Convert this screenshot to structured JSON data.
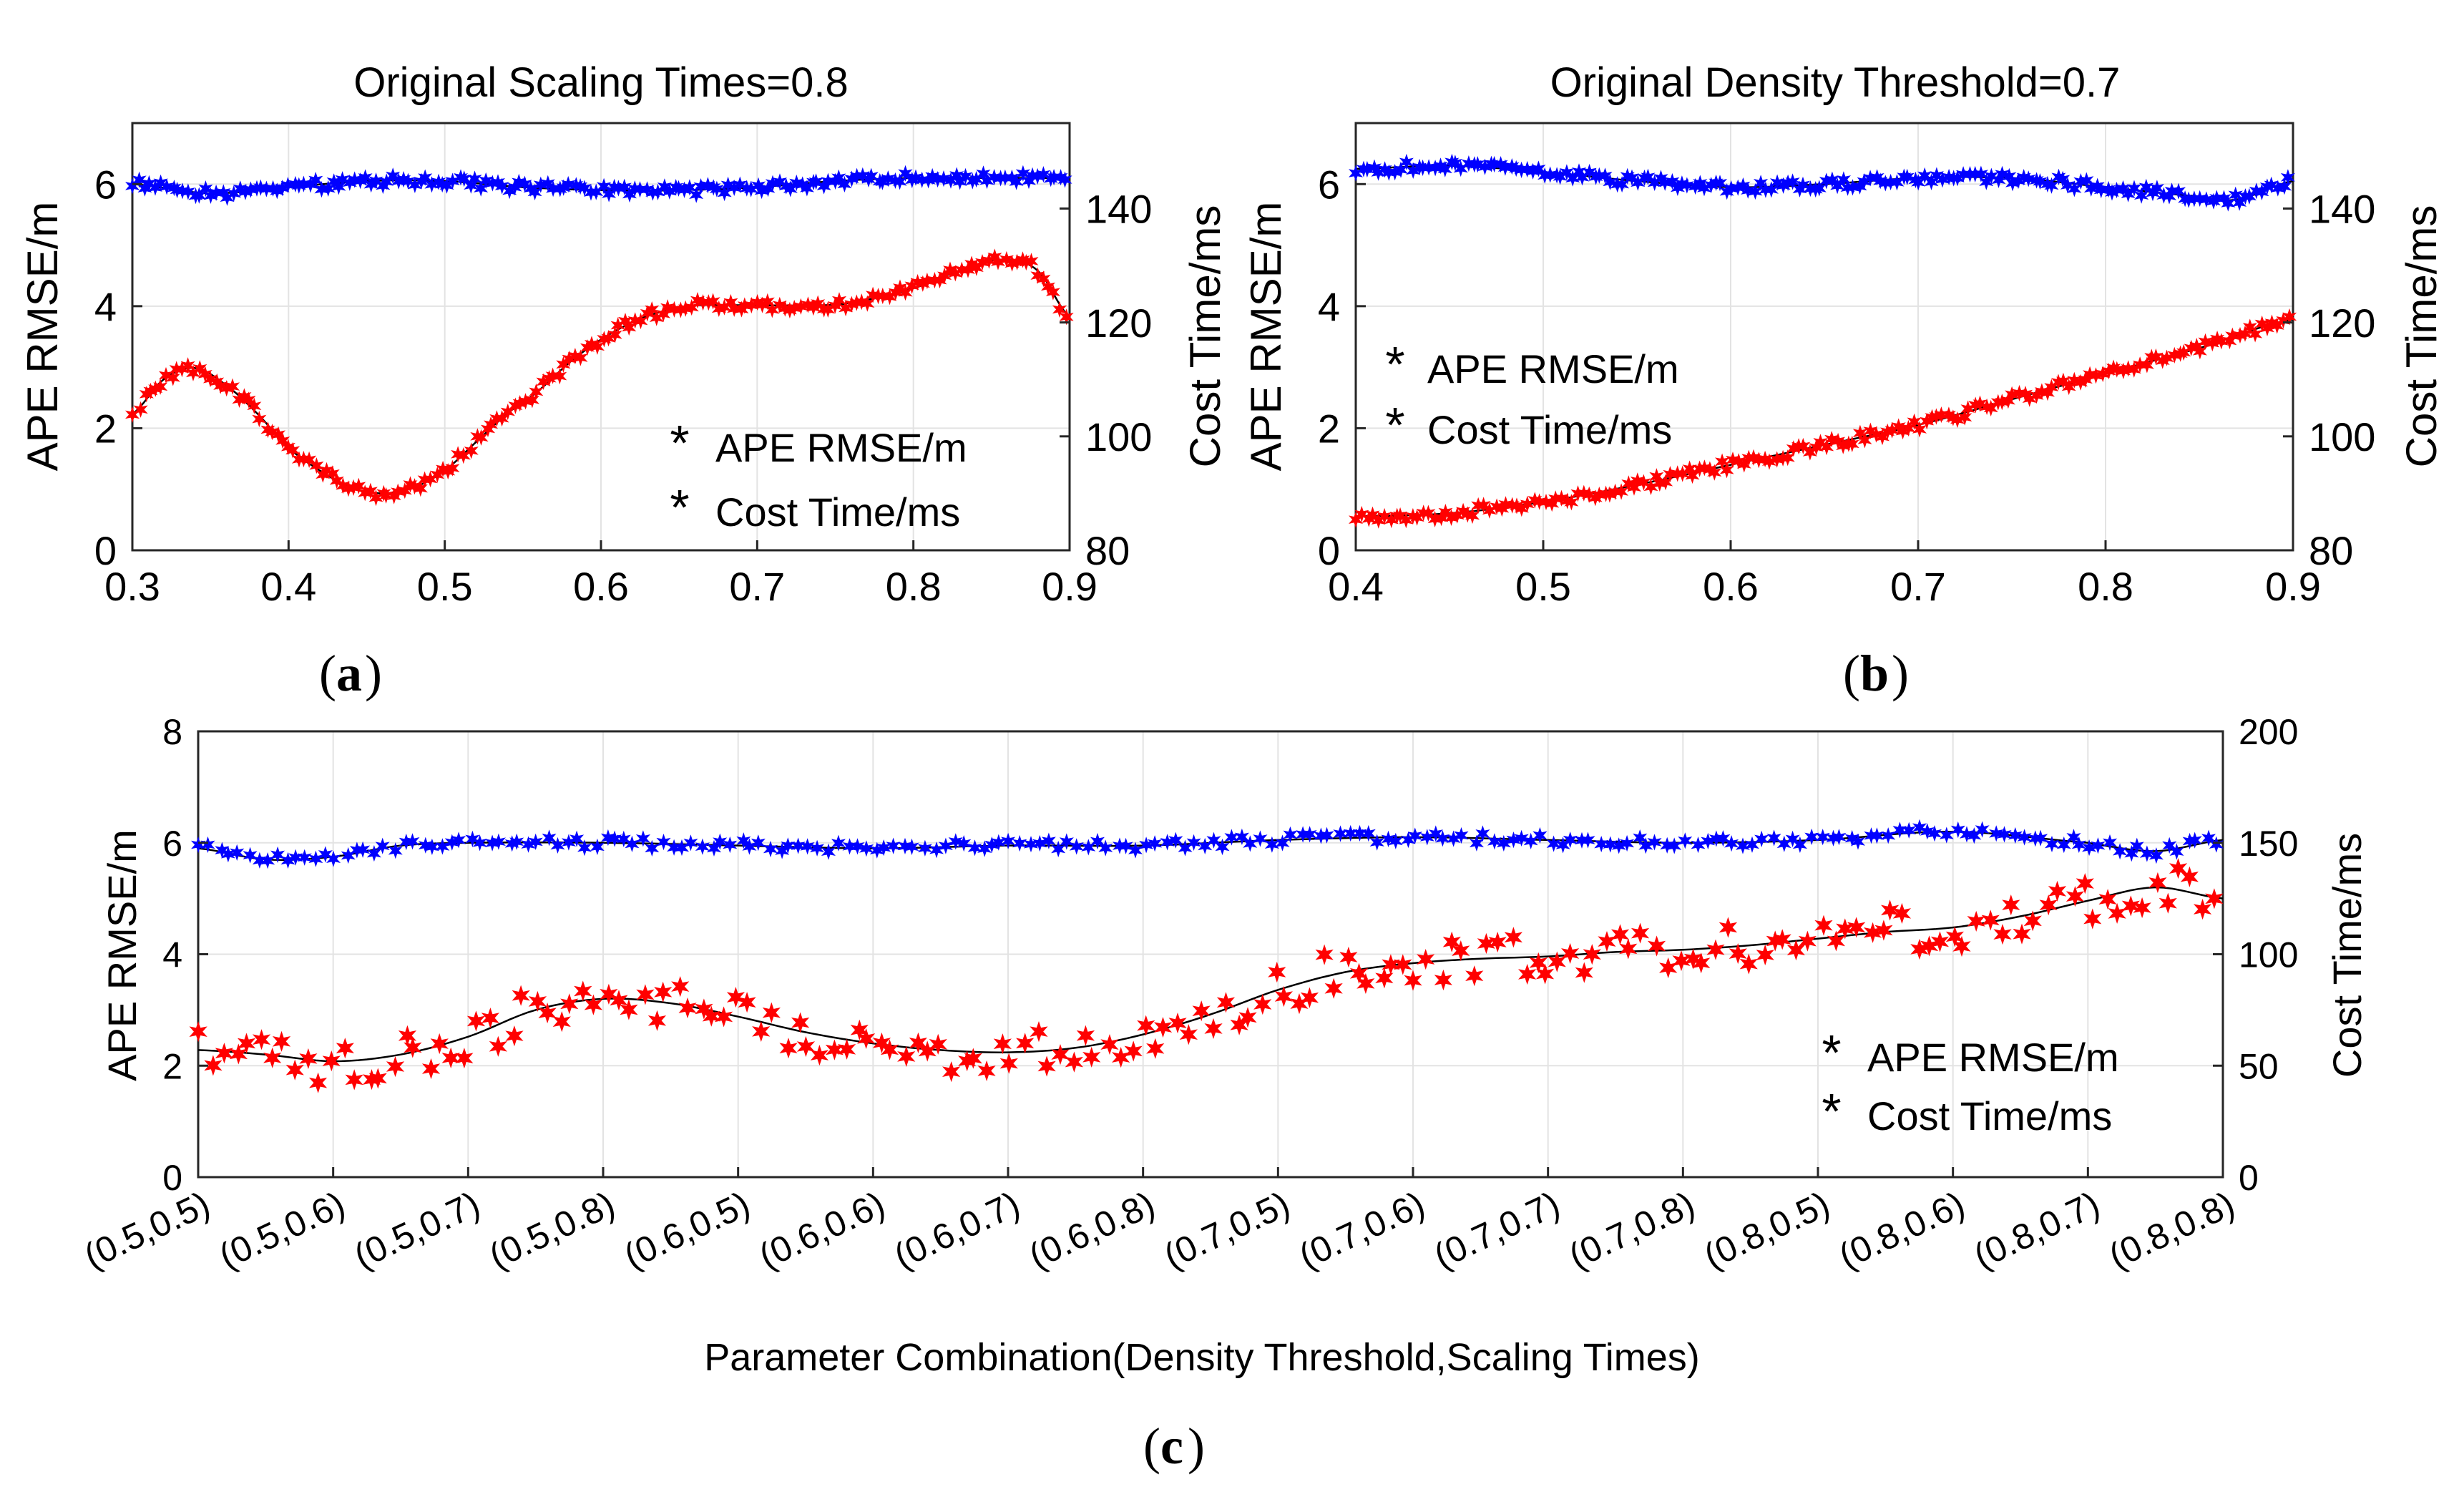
{
  "chart_data": [
    {
      "id": "a",
      "type": "scatter",
      "panel_label": "a",
      "title": "Original Scaling Times=0.8",
      "xlabel": "",
      "ylabel_left": "APE RMSE/m",
      "ylabel_right": "Cost Time/ms",
      "xlim": [
        0.3,
        0.9
      ],
      "ylim_left": [
        0,
        7
      ],
      "ylim_right": [
        80,
        155
      ],
      "xticks": [
        0.3,
        0.4,
        0.5,
        0.6,
        0.7,
        0.8,
        0.9
      ],
      "xtick_labels": [
        "0.3",
        "0.4",
        "0.5",
        "0.6",
        "0.7",
        "0.8",
        "0.9"
      ],
      "yticks_left": [
        0,
        2,
        4,
        6
      ],
      "yticks_left_labels": [
        "0",
        "2",
        "4",
        "6"
      ],
      "yticks_right": [
        80,
        100,
        120,
        140
      ],
      "yticks_right_labels": [
        "80",
        "100",
        "120",
        "140"
      ],
      "grid": true,
      "legend": {
        "position": "lower-right",
        "entries": [
          "APE RMSE/m",
          "Cost Time/ms"
        ]
      },
      "series": [
        {
          "name": "APE RMSE/m",
          "axis": "left",
          "color": "#0000ff",
          "marker": "star",
          "x": [
            0.3,
            0.35,
            0.4,
            0.45,
            0.5,
            0.55,
            0.6,
            0.65,
            0.7,
            0.75,
            0.8,
            0.85,
            0.9
          ],
          "values": [
            6.0,
            5.85,
            5.95,
            6.05,
            6.05,
            5.95,
            5.9,
            5.9,
            5.95,
            6.05,
            6.1,
            6.1,
            6.1
          ]
        },
        {
          "name": "Cost Time/ms",
          "axis": "right",
          "color": "#ff0000",
          "marker": "star",
          "x": [
            0.3,
            0.32,
            0.34,
            0.36,
            0.38,
            0.4,
            0.42,
            0.44,
            0.46,
            0.48,
            0.5,
            0.52,
            0.54,
            0.56,
            0.58,
            0.6,
            0.62,
            0.64,
            0.66,
            0.7,
            0.74,
            0.76,
            0.8,
            0.84,
            0.86,
            0.88,
            0.9
          ],
          "values": [
            104,
            110,
            112,
            109,
            104,
            98,
            94,
            91,
            90,
            91,
            94,
            99,
            104,
            108,
            113,
            117,
            120,
            122,
            123,
            123,
            123,
            123.5,
            126,
            130,
            131,
            129,
            121
          ]
        }
      ]
    },
    {
      "id": "b",
      "type": "scatter",
      "panel_label": "b",
      "title": "Original Density Threshold=0.7",
      "xlabel": "",
      "ylabel_left": "APE RMSE/m",
      "ylabel_right": "Cost Time/ms",
      "xlim": [
        0.4,
        0.9
      ],
      "ylim_left": [
        0,
        7
      ],
      "ylim_right": [
        80,
        155
      ],
      "xticks": [
        0.4,
        0.5,
        0.6,
        0.7,
        0.8,
        0.9
      ],
      "xtick_labels": [
        "0.4",
        "0.5",
        "0.6",
        "0.7",
        "0.8",
        "0.9"
      ],
      "yticks_left": [
        0,
        2,
        4,
        6
      ],
      "yticks_left_labels": [
        "0",
        "2",
        "4",
        "6"
      ],
      "yticks_right": [
        80,
        100,
        120,
        140
      ],
      "yticks_right_labels": [
        "80",
        "100",
        "120",
        "140"
      ],
      "grid": true,
      "legend": {
        "position": "middle-left",
        "entries": [
          "APE RMSE/m",
          "Cost Time/ms"
        ]
      },
      "series": [
        {
          "name": "APE RMSE/m",
          "axis": "left",
          "color": "#0000ff",
          "marker": "star",
          "x": [
            0.4,
            0.45,
            0.5,
            0.55,
            0.6,
            0.65,
            0.7,
            0.75,
            0.8,
            0.85,
            0.87,
            0.9
          ],
          "values": [
            6.25,
            6.3,
            6.2,
            6.05,
            5.95,
            6.0,
            6.1,
            6.1,
            5.95,
            5.8,
            5.75,
            6.05
          ]
        },
        {
          "name": "Cost Time/ms",
          "axis": "right",
          "color": "#ff0000",
          "marker": "star",
          "x": [
            0.4,
            0.45,
            0.5,
            0.55,
            0.6,
            0.65,
            0.7,
            0.75,
            0.8,
            0.85,
            0.9
          ],
          "values": [
            86,
            86.5,
            88.5,
            91.5,
            95,
            98.5,
            102,
            106.5,
            111,
            115.5,
            120.5
          ]
        }
      ]
    },
    {
      "id": "c",
      "type": "scatter",
      "panel_label": "c",
      "title": "",
      "xlabel": "Parameter Combination(Density Threshold,Scaling Times)",
      "ylabel_left": "APE RMSE/m",
      "ylabel_right": "Cost Time/ms",
      "xlim": [
        0,
        15
      ],
      "ylim_left": [
        0,
        8
      ],
      "ylim_right": [
        0,
        200
      ],
      "xticks": [
        0,
        1,
        2,
        3,
        4,
        5,
        6,
        7,
        8,
        9,
        10,
        11,
        12,
        13,
        14,
        15
      ],
      "xtick_labels": [
        "(0.5,0.5)",
        "(0.5,0.6)",
        "(0.5,0.7)",
        "(0.5,0.8)",
        "(0.6,0.5)",
        "(0.6,0.6)",
        "(0.6,0.7)",
        "(0.6,0.8)",
        "(0.7,0.5)",
        "(0.7,0.6)",
        "(0.7,0.7)",
        "(0.7,0.8)",
        "(0.8,0.5)",
        "(0.8,0.6)",
        "(0.8,0.7)",
        "(0.8,0.8)"
      ],
      "yticks_left": [
        0,
        2,
        4,
        6,
        8
      ],
      "yticks_left_labels": [
        "0",
        "2",
        "4",
        "6",
        "8"
      ],
      "yticks_right": [
        0,
        50,
        100,
        150,
        200
      ],
      "yticks_right_labels": [
        "0",
        "50",
        "100",
        "150",
        "200"
      ],
      "grid": true,
      "legend": {
        "position": "lower-right",
        "entries": [
          "APE RMSE/m",
          "Cost Time/ms"
        ]
      },
      "series": [
        {
          "name": "APE RMSE/m",
          "axis": "left",
          "color": "#0000ff",
          "marker": "star",
          "x": [
            0,
            0.5,
            1,
            1.5,
            2,
            3,
            4,
            5,
            6,
            7,
            8,
            9,
            10,
            11,
            12,
            13,
            14,
            14.5,
            15
          ],
          "values": [
            5.9,
            5.7,
            5.75,
            5.95,
            6.0,
            6.0,
            5.95,
            5.9,
            5.95,
            5.95,
            6.05,
            6.1,
            6.05,
            6.0,
            6.05,
            6.2,
            6.0,
            5.85,
            6.05
          ]
        },
        {
          "name": "Cost Time/ms",
          "axis": "right",
          "color": "#ff0000",
          "marker": "star",
          "x": [
            0,
            0.5,
            1,
            1.5,
            2,
            2.5,
            3,
            3.5,
            4,
            4.5,
            5,
            5.5,
            6,
            6.5,
            7,
            7.5,
            8,
            8.5,
            9,
            9.5,
            10,
            10.5,
            11,
            11.5,
            12,
            12.5,
            13,
            13.5,
            14,
            14.5,
            15
          ],
          "values": [
            57,
            55,
            52,
            55,
            63,
            75,
            80,
            78,
            72,
            65,
            60,
            57,
            56,
            58,
            64,
            73,
            84,
            92,
            96,
            98,
            99,
            101,
            102,
            104,
            107,
            110,
            112,
            117,
            124,
            130,
            125
          ]
        }
      ]
    }
  ]
}
